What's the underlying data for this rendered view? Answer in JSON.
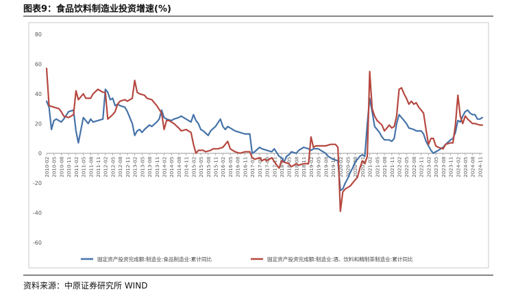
{
  "figure": {
    "title": "图表9：食品饮料制造业投资增速(%)",
    "source": "资料来源：中原证券研究所 WIND"
  },
  "chart_data": {
    "type": "line",
    "ylim": [
      -60,
      80
    ],
    "yticks": [
      -60,
      -40,
      -20,
      0,
      20,
      40,
      60,
      80
    ],
    "grid": false,
    "legend_position": "bottom",
    "x_tick_labels": [
      "2010-02",
      "2010-05",
      "2010-08",
      "2010-11",
      "2011-02",
      "2011-05",
      "2011-08",
      "2011-11",
      "2012-02",
      "2012-05",
      "2012-08",
      "2012-11",
      "2013-02",
      "2013-05",
      "2013-08",
      "2013-11",
      "2014-02",
      "2014-05",
      "2014-08",
      "2014-11",
      "2015-02",
      "2015-05",
      "2015-08",
      "2015-11",
      "2016-02",
      "2016-05",
      "2016-08",
      "2016-11",
      "2017-02",
      "2017-05",
      "2017-08",
      "2017-11",
      "2018-02",
      "2018-05",
      "2018-08",
      "2018-11",
      "2019-02",
      "2019-05",
      "2019-08",
      "2019-11",
      "2020-02",
      "2020-05",
      "2020-08",
      "2020-11",
      "2021-02",
      "2021-05",
      "2021-08",
      "2021-11",
      "2022-02",
      "2022-05",
      "2022-08",
      "2022-11",
      "2023-02",
      "2023-05",
      "2023-08",
      "2023-11",
      "2024-02",
      "2024-05",
      "2024-08",
      "2024-11"
    ],
    "series": [
      {
        "name": "固定资产投资完成额:制造业:食品制造业:累计同比",
        "color": "#4472a8",
        "points": [
          [
            "2010-02",
            35
          ],
          [
            "2010-03",
            31
          ],
          [
            "2010-04",
            16
          ],
          [
            "2010-05",
            22
          ],
          [
            "2010-06",
            23
          ],
          [
            "2010-08",
            21
          ],
          [
            "2010-09",
            23
          ],
          [
            "2010-11",
            28
          ],
          [
            "2011-01",
            29
          ],
          [
            "2011-02",
            15
          ],
          [
            "2011-03",
            7
          ],
          [
            "2011-05",
            24
          ],
          [
            "2011-07",
            20
          ],
          [
            "2011-08",
            23
          ],
          [
            "2011-09",
            21
          ],
          [
            "2011-11",
            22
          ],
          [
            "2012-01",
            23
          ],
          [
            "2012-02",
            43
          ],
          [
            "2012-03",
            41
          ],
          [
            "2012-04",
            36
          ],
          [
            "2012-05",
            37
          ],
          [
            "2012-06",
            32
          ],
          [
            "2012-07",
            33
          ],
          [
            "2012-08",
            32
          ],
          [
            "2012-10",
            31
          ],
          [
            "2012-11",
            28
          ],
          [
            "2013-01",
            20
          ],
          [
            "2013-02",
            12
          ],
          [
            "2013-03",
            15
          ],
          [
            "2013-04",
            16
          ],
          [
            "2013-05",
            14
          ],
          [
            "2013-06",
            16
          ],
          [
            "2013-08",
            19
          ],
          [
            "2013-09",
            18
          ],
          [
            "2013-11",
            21
          ],
          [
            "2013-12",
            23
          ],
          [
            "2014-01",
            29
          ],
          [
            "2014-02",
            24
          ],
          [
            "2014-03",
            23
          ],
          [
            "2014-05",
            22
          ],
          [
            "2014-06",
            23
          ],
          [
            "2014-08",
            24
          ],
          [
            "2014-09",
            25
          ],
          [
            "2014-11",
            23
          ],
          [
            "2015-01",
            21
          ],
          [
            "2015-02",
            26
          ],
          [
            "2015-03",
            22
          ],
          [
            "2015-04",
            20
          ],
          [
            "2015-05",
            16
          ],
          [
            "2015-06",
            15
          ],
          [
            "2015-08",
            12
          ],
          [
            "2015-09",
            15
          ],
          [
            "2015-11",
            18
          ],
          [
            "2016-01",
            23
          ],
          [
            "2016-02",
            18
          ],
          [
            "2016-03",
            16
          ],
          [
            "2016-04",
            18
          ],
          [
            "2016-05",
            17
          ],
          [
            "2016-07",
            15
          ],
          [
            "2016-09",
            14
          ],
          [
            "2016-11",
            13
          ],
          [
            "2017-01",
            13
          ],
          [
            "2017-02",
            0
          ],
          [
            "2017-03",
            1
          ],
          [
            "2017-05",
            4
          ],
          [
            "2017-06",
            3
          ],
          [
            "2017-08",
            2
          ],
          [
            "2017-10",
            1
          ],
          [
            "2017-11",
            3
          ],
          [
            "2018-01",
            -2
          ],
          [
            "2018-02",
            -3
          ],
          [
            "2018-03",
            -6
          ],
          [
            "2018-04",
            -2
          ],
          [
            "2018-05",
            -1
          ],
          [
            "2018-06",
            1
          ],
          [
            "2018-08",
            0
          ],
          [
            "2018-09",
            2
          ],
          [
            "2018-11",
            4
          ],
          [
            "2019-01",
            3
          ],
          [
            "2019-02",
            2
          ],
          [
            "2019-03",
            3
          ],
          [
            "2019-05",
            3
          ],
          [
            "2019-06",
            2
          ],
          [
            "2019-08",
            0
          ],
          [
            "2019-09",
            -2
          ],
          [
            "2019-11",
            -4
          ],
          [
            "2020-01",
            -5
          ],
          [
            "2020-02",
            -25
          ],
          [
            "2020-03",
            -24
          ],
          [
            "2020-04",
            -20
          ],
          [
            "2020-05",
            -17
          ],
          [
            "2020-06",
            -13
          ],
          [
            "2020-07",
            -10
          ],
          [
            "2020-08",
            -6
          ],
          [
            "2020-09",
            -4
          ],
          [
            "2020-10",
            -2
          ],
          [
            "2020-11",
            -1
          ],
          [
            "2020-12",
            -2
          ],
          [
            "2021-01",
            20
          ],
          [
            "2021-02",
            37
          ],
          [
            "2021-03",
            28
          ],
          [
            "2021-04",
            18
          ],
          [
            "2021-05",
            16
          ],
          [
            "2021-06",
            14
          ],
          [
            "2021-07",
            11
          ],
          [
            "2021-08",
            9
          ],
          [
            "2021-10",
            9
          ],
          [
            "2021-11",
            8
          ],
          [
            "2021-12",
            10
          ],
          [
            "2022-01",
            20
          ],
          [
            "2022-02",
            26
          ],
          [
            "2022-03",
            24
          ],
          [
            "2022-04",
            22
          ],
          [
            "2022-05",
            20
          ],
          [
            "2022-06",
            17
          ],
          [
            "2022-08",
            16
          ],
          [
            "2022-09",
            15
          ],
          [
            "2022-11",
            15
          ],
          [
            "2022-12",
            13
          ],
          [
            "2023-01",
            8
          ],
          [
            "2023-02",
            5
          ],
          [
            "2023-03",
            2
          ],
          [
            "2023-04",
            0
          ],
          [
            "2023-05",
            1
          ],
          [
            "2023-06",
            2
          ],
          [
            "2023-08",
            4
          ],
          [
            "2023-09",
            6
          ],
          [
            "2023-11",
            9
          ],
          [
            "2023-12",
            10
          ],
          [
            "2024-01",
            14
          ],
          [
            "2024-02",
            22
          ],
          [
            "2024-03",
            21
          ],
          [
            "2024-04",
            25
          ],
          [
            "2024-05",
            28
          ],
          [
            "2024-06",
            29
          ],
          [
            "2024-07",
            27
          ],
          [
            "2024-08",
            26
          ],
          [
            "2024-09",
            26
          ],
          [
            "2024-10",
            23
          ],
          [
            "2024-11",
            23
          ],
          [
            "2024-12",
            24
          ]
        ]
      },
      {
        "name": "固定资产投资完成额:制造业:酒、饮料和精制茶制造业:累计同比",
        "color": "#b5473f",
        "points": [
          [
            "2010-02",
            57
          ],
          [
            "2010-03",
            32
          ],
          [
            "2010-05",
            31
          ],
          [
            "2010-07",
            30
          ],
          [
            "2010-08",
            28
          ],
          [
            "2010-09",
            25
          ],
          [
            "2010-11",
            24
          ],
          [
            "2011-01",
            26
          ],
          [
            "2011-02",
            42
          ],
          [
            "2011-03",
            36
          ],
          [
            "2011-04",
            38
          ],
          [
            "2011-05",
            40
          ],
          [
            "2011-06",
            37
          ],
          [
            "2011-08",
            37
          ],
          [
            "2011-09",
            40
          ],
          [
            "2011-11",
            43
          ],
          [
            "2012-01",
            41
          ],
          [
            "2012-02",
            41
          ],
          [
            "2012-03",
            23
          ],
          [
            "2012-05",
            26
          ],
          [
            "2012-06",
            28
          ],
          [
            "2012-07",
            33
          ],
          [
            "2012-08",
            35
          ],
          [
            "2012-10",
            36
          ],
          [
            "2012-11",
            35
          ],
          [
            "2013-01",
            37
          ],
          [
            "2013-02",
            49
          ],
          [
            "2013-03",
            41
          ],
          [
            "2013-04",
            40
          ],
          [
            "2013-06",
            39
          ],
          [
            "2013-07",
            37
          ],
          [
            "2013-09",
            36
          ],
          [
            "2013-10",
            34
          ],
          [
            "2013-11",
            32
          ],
          [
            "2014-01",
            27
          ],
          [
            "2014-02",
            16
          ],
          [
            "2014-03",
            22
          ],
          [
            "2014-04",
            22
          ],
          [
            "2014-06",
            20
          ],
          [
            "2014-08",
            17
          ],
          [
            "2014-09",
            15
          ],
          [
            "2014-11",
            16
          ],
          [
            "2015-01",
            14
          ],
          [
            "2015-02",
            6
          ],
          [
            "2015-03",
            0
          ],
          [
            "2015-04",
            2
          ],
          [
            "2015-06",
            2
          ],
          [
            "2015-07",
            1
          ],
          [
            "2015-09",
            2
          ],
          [
            "2015-10",
            3
          ],
          [
            "2015-12",
            3
          ],
          [
            "2016-02",
            4
          ],
          [
            "2016-03",
            6
          ],
          [
            "2016-04",
            8
          ],
          [
            "2016-05",
            3
          ],
          [
            "2016-07",
            1
          ],
          [
            "2016-09",
            0
          ],
          [
            "2016-11",
            1
          ],
          [
            "2017-01",
            1
          ],
          [
            "2017-02",
            -3
          ],
          [
            "2017-03",
            -4
          ],
          [
            "2017-05",
            -3
          ],
          [
            "2017-06",
            -5
          ],
          [
            "2017-07",
            -4
          ],
          [
            "2017-08",
            -5
          ],
          [
            "2017-10",
            -3
          ],
          [
            "2017-12",
            -8
          ],
          [
            "2018-01",
            -10
          ],
          [
            "2018-02",
            -5
          ],
          [
            "2018-03",
            -6
          ],
          [
            "2018-05",
            -7
          ],
          [
            "2018-06",
            -9
          ],
          [
            "2018-08",
            -7
          ],
          [
            "2018-09",
            -8
          ],
          [
            "2018-11",
            -7
          ],
          [
            "2019-01",
            -7
          ],
          [
            "2019-02",
            11
          ],
          [
            "2019-03",
            4
          ],
          [
            "2019-04",
            5
          ],
          [
            "2019-06",
            5
          ],
          [
            "2019-08",
            5
          ],
          [
            "2019-10",
            6
          ],
          [
            "2019-12",
            6
          ],
          [
            "2020-01",
            4
          ],
          [
            "2020-02",
            -39
          ],
          [
            "2020-03",
            -26
          ],
          [
            "2020-04",
            -24
          ],
          [
            "2020-06",
            -22
          ],
          [
            "2020-08",
            -18
          ],
          [
            "2020-09",
            -16
          ],
          [
            "2020-10",
            -10
          ],
          [
            "2020-11",
            -5
          ],
          [
            "2020-12",
            -7
          ],
          [
            "2021-01",
            -2
          ],
          [
            "2021-02",
            55
          ],
          [
            "2021-03",
            30
          ],
          [
            "2021-04",
            25
          ],
          [
            "2021-05",
            22
          ],
          [
            "2021-07",
            19
          ],
          [
            "2021-08",
            15
          ],
          [
            "2021-09",
            17
          ],
          [
            "2021-10",
            19
          ],
          [
            "2021-11",
            17
          ],
          [
            "2021-12",
            18
          ],
          [
            "2022-01",
            25
          ],
          [
            "2022-02",
            43
          ],
          [
            "2022-03",
            44
          ],
          [
            "2022-04",
            40
          ],
          [
            "2022-05",
            37
          ],
          [
            "2022-06",
            33
          ],
          [
            "2022-07",
            35
          ],
          [
            "2022-08",
            33
          ],
          [
            "2022-09",
            34
          ],
          [
            "2022-10",
            31
          ],
          [
            "2022-11",
            29
          ],
          [
            "2022-12",
            27
          ],
          [
            "2023-01",
            16
          ],
          [
            "2023-02",
            6
          ],
          [
            "2023-03",
            10
          ],
          [
            "2023-04",
            10
          ],
          [
            "2023-05",
            5
          ],
          [
            "2023-06",
            4
          ],
          [
            "2023-08",
            3
          ],
          [
            "2023-09",
            6
          ],
          [
            "2023-11",
            7
          ],
          [
            "2023-12",
            7
          ],
          [
            "2024-01",
            19
          ],
          [
            "2024-02",
            39
          ],
          [
            "2024-03",
            25
          ],
          [
            "2024-04",
            20
          ],
          [
            "2024-05",
            25
          ],
          [
            "2024-06",
            23
          ],
          [
            "2024-08",
            20
          ],
          [
            "2024-09",
            20
          ],
          [
            "2024-11",
            19
          ],
          [
            "2024-12",
            19
          ]
        ]
      }
    ]
  }
}
